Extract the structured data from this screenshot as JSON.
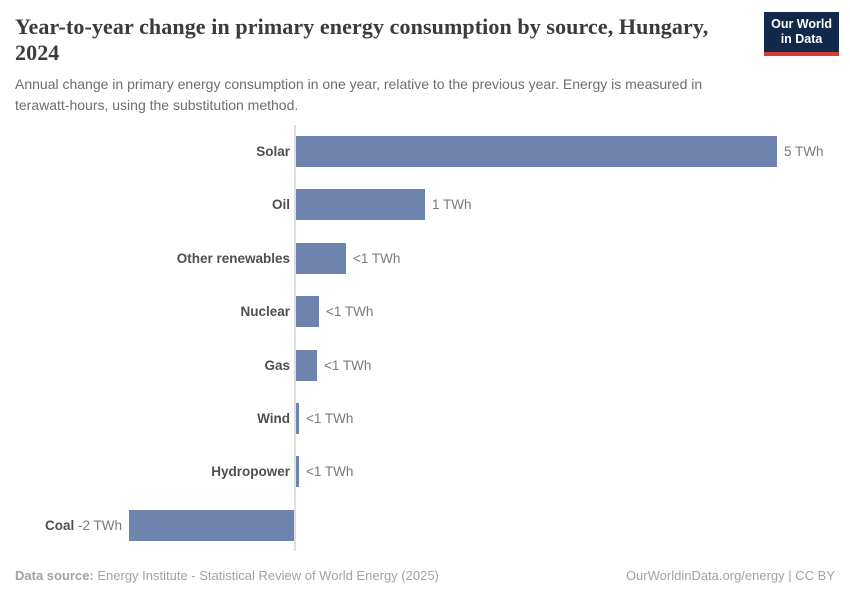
{
  "header": {
    "title": "Year-to-year change in primary energy consumption by source, Hungary, 2024",
    "subtitle": "Annual change in primary energy consumption in one year, relative to the previous year. Energy is measured in terawatt-hours, using the substitution method."
  },
  "logo": {
    "line1": "Our World",
    "line2": "in Data",
    "bg_color": "#11294b",
    "accent_color": "#d93a32"
  },
  "chart_data": {
    "type": "bar",
    "orientation": "horizontal",
    "title": "Year-to-year change in primary energy consumption by source, Hungary, 2024",
    "unit": "TWh",
    "xlim": [
      -2,
      5
    ],
    "grid": false,
    "legend": "none",
    "bar_color": "#6e84ae",
    "categories": [
      "Solar",
      "Oil",
      "Other renewables",
      "Nuclear",
      "Gas",
      "Wind",
      "Hydropower",
      "Coal"
    ],
    "values": [
      5,
      1.34,
      0.52,
      0.24,
      0.22,
      0.03,
      0.03,
      -1.72
    ],
    "value_labels": [
      "5 TWh",
      "1 TWh",
      "<1 TWh",
      "<1 TWh",
      "<1 TWh",
      "<1 TWh",
      "<1 TWh",
      "-2 TWh"
    ]
  },
  "footer": {
    "source_label": "Data source:",
    "source_text": " Energy Institute - Statistical Review of World Energy (2025)",
    "right_text": "OurWorldinData.org/energy | CC BY"
  }
}
